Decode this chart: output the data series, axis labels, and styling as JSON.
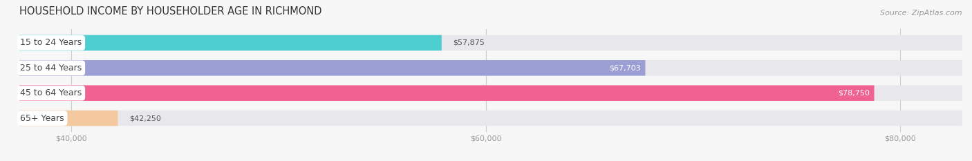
{
  "title": "HOUSEHOLD INCOME BY HOUSEHOLDER AGE IN RICHMOND",
  "source": "Source: ZipAtlas.com",
  "categories": [
    "15 to 24 Years",
    "25 to 44 Years",
    "45 to 64 Years",
    "65+ Years"
  ],
  "values": [
    57875,
    67703,
    78750,
    42250
  ],
  "bar_colors": [
    "#4ECECE",
    "#9B9FD4",
    "#F06292",
    "#F5C9A0"
  ],
  "background_color": "#f7f7f7",
  "bar_background": "#e8e8ec",
  "xlim_min": 37500,
  "xlim_max": 83000,
  "xticks": [
    40000,
    60000,
    80000
  ],
  "xtick_labels": [
    "$40,000",
    "$60,000",
    "$80,000"
  ],
  "title_fontsize": 10.5,
  "source_fontsize": 8,
  "label_fontsize": 9,
  "value_fontsize": 8,
  "bar_height": 0.62,
  "label_pill_color": "white",
  "label_text_color": "#444444",
  "value_text_color_inside": "white",
  "value_text_color_outside": "#555555",
  "tick_color": "#999999",
  "grid_color": "#cccccc",
  "title_color": "#333333"
}
